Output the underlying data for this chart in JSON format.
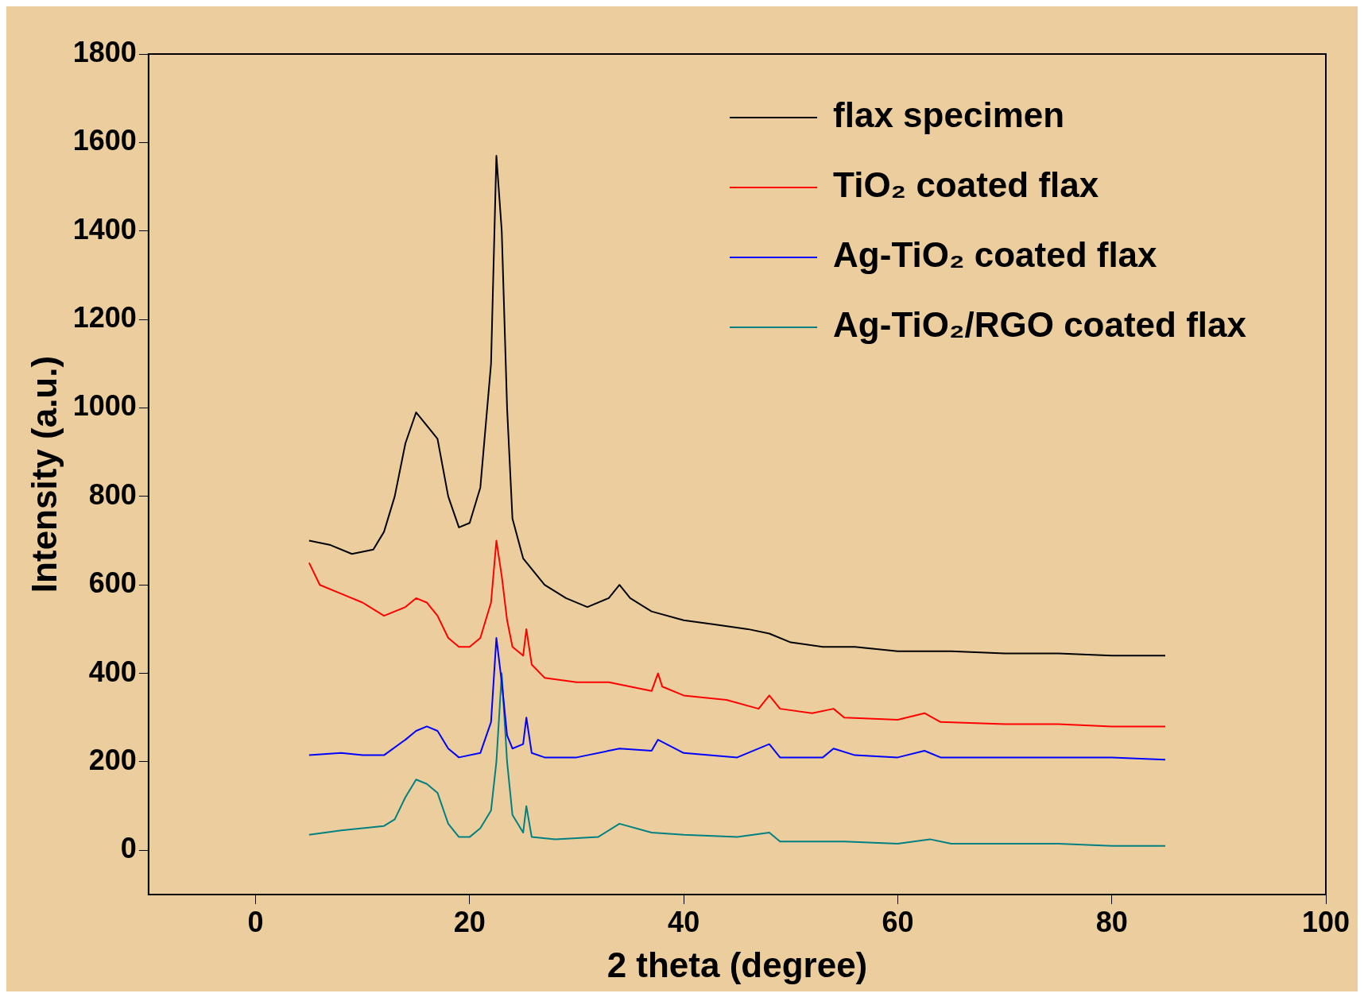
{
  "chart_data": {
    "type": "line",
    "xlabel": "2 theta (degree)",
    "ylabel": "Intensity (a.u.)",
    "xlim": [
      -10,
      100
    ],
    "xticks": [
      0,
      20,
      40,
      60,
      80,
      100
    ],
    "ylim": [
      -100,
      1800
    ],
    "yticks": [
      0,
      200,
      400,
      600,
      800,
      1000,
      1200,
      1400,
      1600,
      1800
    ],
    "grid": false,
    "legend": "top right",
    "marker": "none",
    "line_style": "solid",
    "series": [
      {
        "name": "flax specimen",
        "color": "#000000",
        "x": [
          5,
          7,
          9,
          11,
          12,
          13,
          14,
          15,
          16,
          17,
          18,
          19,
          20,
          21,
          22,
          22.5,
          23,
          23.5,
          24,
          25,
          27,
          29,
          31,
          33,
          34,
          35,
          37,
          40,
          43,
          46,
          48,
          50,
          53,
          56,
          60,
          65,
          70,
          75,
          80,
          85
        ],
        "values": [
          700,
          690,
          670,
          680,
          720,
          800,
          920,
          990,
          960,
          930,
          800,
          730,
          740,
          820,
          1100,
          1570,
          1400,
          1000,
          750,
          660,
          600,
          570,
          550,
          570,
          600,
          570,
          540,
          520,
          510,
          500,
          490,
          470,
          460,
          460,
          450,
          450,
          445,
          445,
          440,
          440
        ]
      },
      {
        "name": "TiO₂ coated flax",
        "color": "#ff0000",
        "x": [
          5,
          6,
          8,
          10,
          12,
          14,
          15,
          16,
          17,
          18,
          19,
          20,
          21,
          22,
          22.5,
          23,
          23.5,
          24,
          25,
          25.3,
          25.8,
          27,
          30,
          33,
          35,
          37,
          37.6,
          38,
          40,
          44,
          47,
          48,
          49,
          52,
          54,
          55,
          60,
          62.5,
          64,
          70,
          75,
          80,
          85
        ],
        "values": [
          650,
          600,
          580,
          560,
          530,
          550,
          570,
          560,
          530,
          480,
          460,
          460,
          480,
          560,
          700,
          620,
          520,
          460,
          440,
          500,
          420,
          390,
          380,
          380,
          370,
          360,
          400,
          370,
          350,
          340,
          320,
          350,
          320,
          310,
          320,
          300,
          295,
          310,
          290,
          285,
          285,
          280,
          280
        ]
      },
      {
        "name": "Ag-TiO₂ coated flax",
        "color": "#0000ff",
        "x": [
          5,
          8,
          10,
          12,
          14,
          15,
          16,
          17,
          18,
          19,
          21,
          22,
          22.5,
          23,
          23.5,
          24,
          25,
          25.3,
          25.8,
          27,
          30,
          34,
          37,
          37.6,
          40,
          45,
          48,
          49,
          53,
          54,
          56,
          60,
          62.5,
          64,
          70,
          75,
          80,
          85
        ],
        "values": [
          215,
          220,
          215,
          215,
          250,
          270,
          280,
          270,
          230,
          210,
          220,
          290,
          480,
          380,
          260,
          230,
          240,
          300,
          220,
          210,
          210,
          230,
          225,
          250,
          220,
          210,
          240,
          210,
          210,
          230,
          215,
          210,
          225,
          210,
          210,
          210,
          210,
          205
        ]
      },
      {
        "name": "Ag-TiO₂/RGO coated flax",
        "color": "#008080",
        "x": [
          5,
          8,
          10,
          12,
          13,
          14,
          15,
          16,
          17,
          18,
          19,
          20,
          21,
          22,
          22.5,
          23,
          23.5,
          24,
          25,
          25.3,
          25.8,
          28,
          32,
          34,
          37,
          40,
          45,
          48,
          49,
          55,
          60,
          63,
          65,
          70,
          75,
          80,
          85
        ],
        "values": [
          35,
          45,
          50,
          55,
          70,
          120,
          160,
          150,
          130,
          60,
          30,
          30,
          50,
          90,
          200,
          400,
          200,
          80,
          40,
          100,
          30,
          25,
          30,
          60,
          40,
          35,
          30,
          40,
          20,
          20,
          15,
          25,
          15,
          15,
          15,
          10,
          10
        ]
      }
    ]
  }
}
